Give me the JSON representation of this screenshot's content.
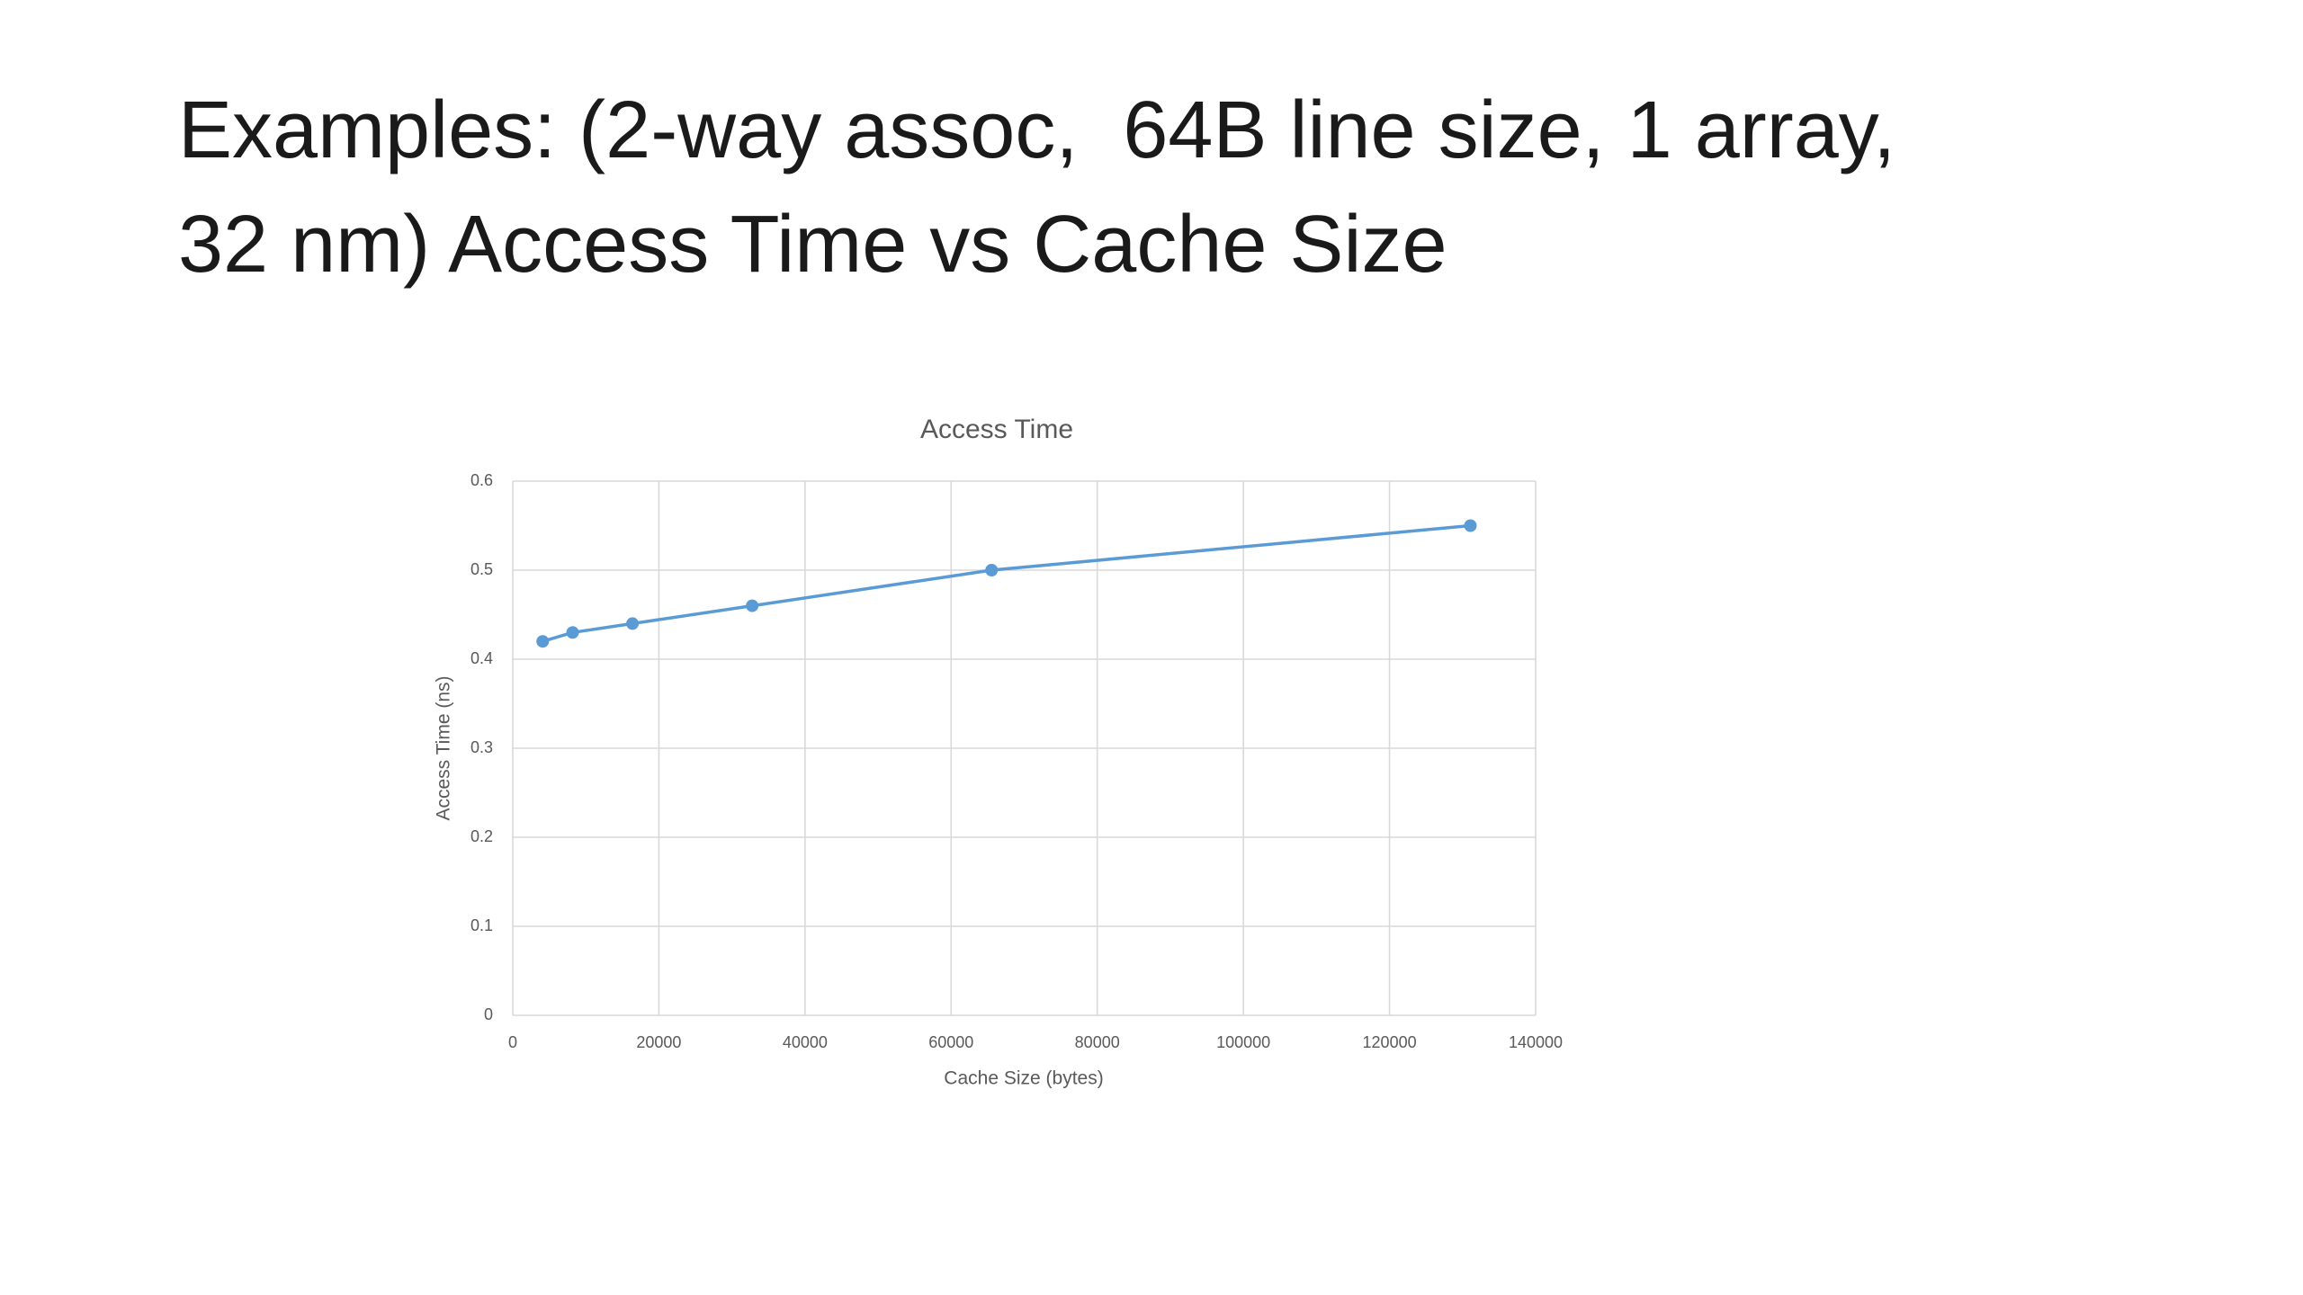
{
  "slide": {
    "title": [
      "Examples: (2-way assoc,  64B line size, 1 array,",
      "32 nm) Access Time vs Cache Size"
    ]
  },
  "chart_data": {
    "type": "line",
    "title": "Access Time",
    "x_label": "Cache Size (bytes)",
    "y_label": "Access Time (ns)",
    "x": [
      4096,
      8192,
      16384,
      32768,
      65536,
      131072
    ],
    "series": [
      {
        "name": "Access Time",
        "color": "#5b9bd5",
        "values": [
          0.42,
          0.43,
          0.44,
          0.46,
          0.5,
          0.55
        ]
      }
    ],
    "xlim": [
      0,
      140000
    ],
    "xticks": [
      0,
      20000,
      40000,
      60000,
      80000,
      100000,
      120000,
      140000
    ],
    "ylim": [
      0,
      0.6
    ],
    "yticks": [
      0,
      0.1,
      0.2,
      0.3,
      0.4,
      0.5,
      0.6
    ],
    "grid": true,
    "markers": true
  }
}
